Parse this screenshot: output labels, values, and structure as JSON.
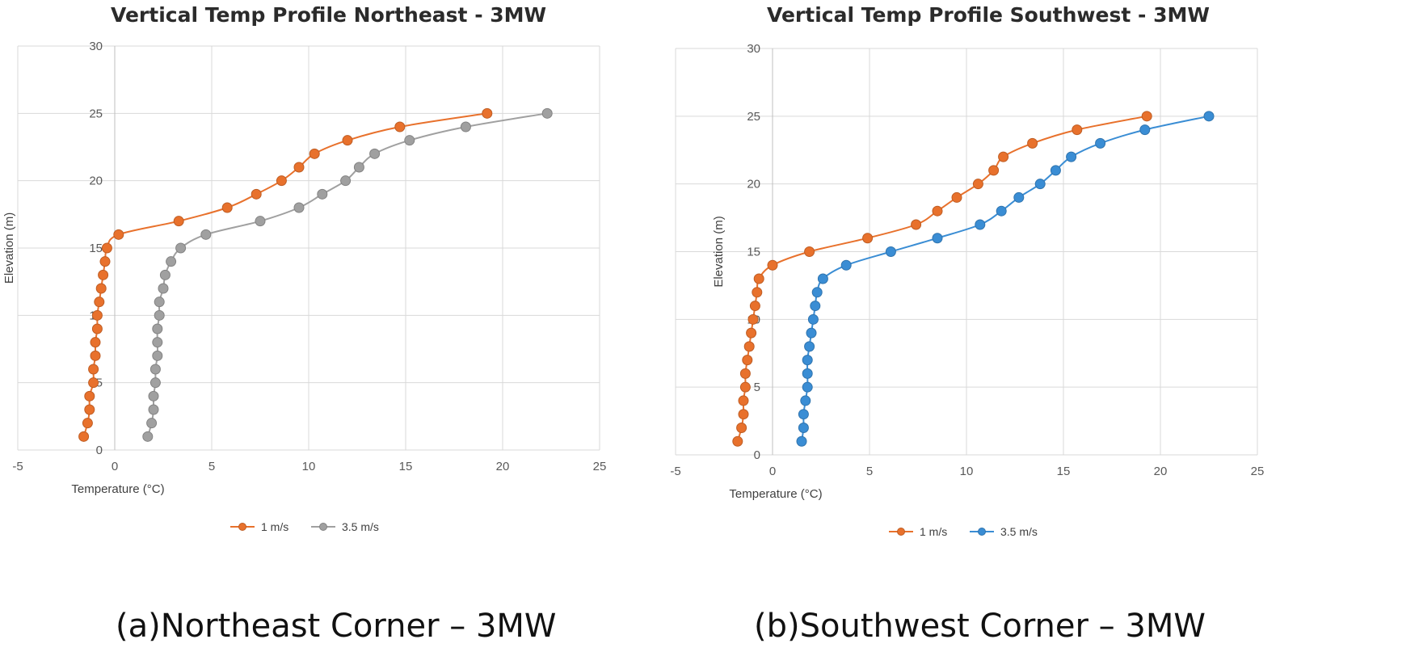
{
  "chart_data": [
    {
      "type": "line",
      "title": "Vertical Temp Profile Northeast - 3MW",
      "xlabel": "Temperature (°C)",
      "ylabel": "Elevation (m)",
      "xlim": [
        -5,
        25
      ],
      "ylim": [
        0,
        30
      ],
      "x_ticks": [
        -5,
        0,
        5,
        10,
        15,
        20,
        25
      ],
      "y_ticks": [
        0,
        5,
        10,
        15,
        20,
        25,
        30
      ],
      "grid": true,
      "legend_position": "bottom",
      "caption": "(a)Northeast Corner – 3MW",
      "series": [
        {
          "name": "1 m/s",
          "color": "#E8712C",
          "points": [
            [
              -1.6,
              1
            ],
            [
              -1.4,
              2
            ],
            [
              -1.3,
              3
            ],
            [
              -1.3,
              4
            ],
            [
              -1.1,
              5
            ],
            [
              -1.1,
              6
            ],
            [
              -1.0,
              7
            ],
            [
              -1.0,
              8
            ],
            [
              -0.9,
              9
            ],
            [
              -0.9,
              10
            ],
            [
              -0.8,
              11
            ],
            [
              -0.7,
              12
            ],
            [
              -0.6,
              13
            ],
            [
              -0.5,
              14
            ],
            [
              -0.4,
              15
            ],
            [
              0.2,
              16
            ],
            [
              3.3,
              17
            ],
            [
              5.8,
              18
            ],
            [
              7.3,
              19
            ],
            [
              8.6,
              20
            ],
            [
              9.5,
              21
            ],
            [
              10.3,
              22
            ],
            [
              12.0,
              23
            ],
            [
              14.7,
              24
            ],
            [
              19.2,
              25
            ]
          ]
        },
        {
          "name": "3.5 m/s",
          "color": "#A0A0A0",
          "points": [
            [
              1.7,
              1
            ],
            [
              1.9,
              2
            ],
            [
              2.0,
              3
            ],
            [
              2.0,
              4
            ],
            [
              2.1,
              5
            ],
            [
              2.1,
              6
            ],
            [
              2.2,
              7
            ],
            [
              2.2,
              8
            ],
            [
              2.2,
              9
            ],
            [
              2.3,
              10
            ],
            [
              2.3,
              11
            ],
            [
              2.5,
              12
            ],
            [
              2.6,
              13
            ],
            [
              2.9,
              14
            ],
            [
              3.4,
              15
            ],
            [
              4.7,
              16
            ],
            [
              7.5,
              17
            ],
            [
              9.5,
              18
            ],
            [
              10.7,
              19
            ],
            [
              11.9,
              20
            ],
            [
              12.6,
              21
            ],
            [
              13.4,
              22
            ],
            [
              15.2,
              23
            ],
            [
              18.1,
              24
            ],
            [
              22.3,
              25
            ]
          ]
        }
      ]
    },
    {
      "type": "line",
      "title": "Vertical Temp Profile Southwest - 3MW",
      "xlabel": "Temperature (°C)",
      "ylabel": "Elevation (m)",
      "xlim": [
        -5,
        25
      ],
      "ylim": [
        0,
        30
      ],
      "x_ticks": [
        -5,
        0,
        5,
        10,
        15,
        20,
        25
      ],
      "y_ticks": [
        0,
        5,
        10,
        15,
        20,
        25,
        30
      ],
      "grid": true,
      "legend_position": "bottom",
      "caption": "(b)Southwest Corner – 3MW",
      "series": [
        {
          "name": "1 m/s",
          "color": "#E8712C",
          "points": [
            [
              -1.8,
              1
            ],
            [
              -1.6,
              2
            ],
            [
              -1.5,
              3
            ],
            [
              -1.5,
              4
            ],
            [
              -1.4,
              5
            ],
            [
              -1.4,
              6
            ],
            [
              -1.3,
              7
            ],
            [
              -1.2,
              8
            ],
            [
              -1.1,
              9
            ],
            [
              -1.0,
              10
            ],
            [
              -0.9,
              11
            ],
            [
              -0.8,
              12
            ],
            [
              -0.7,
              13
            ],
            [
              0.0,
              14
            ],
            [
              1.9,
              15
            ],
            [
              4.9,
              16
            ],
            [
              7.4,
              17
            ],
            [
              8.5,
              18
            ],
            [
              9.5,
              19
            ],
            [
              10.6,
              20
            ],
            [
              11.4,
              21
            ],
            [
              11.9,
              22
            ],
            [
              13.4,
              23
            ],
            [
              15.7,
              24
            ],
            [
              19.3,
              25
            ]
          ]
        },
        {
          "name": "3.5 m/s",
          "color": "#3A8DD4",
          "points": [
            [
              1.5,
              1
            ],
            [
              1.6,
              2
            ],
            [
              1.6,
              3
            ],
            [
              1.7,
              4
            ],
            [
              1.8,
              5
            ],
            [
              1.8,
              6
            ],
            [
              1.8,
              7
            ],
            [
              1.9,
              8
            ],
            [
              2.0,
              9
            ],
            [
              2.1,
              10
            ],
            [
              2.2,
              11
            ],
            [
              2.3,
              12
            ],
            [
              2.6,
              13
            ],
            [
              3.8,
              14
            ],
            [
              6.1,
              15
            ],
            [
              8.5,
              16
            ],
            [
              10.7,
              17
            ],
            [
              11.8,
              18
            ],
            [
              12.7,
              19
            ],
            [
              13.8,
              20
            ],
            [
              14.6,
              21
            ],
            [
              15.4,
              22
            ],
            [
              16.9,
              23
            ],
            [
              19.2,
              24
            ],
            [
              22.5,
              25
            ]
          ]
        }
      ]
    }
  ]
}
